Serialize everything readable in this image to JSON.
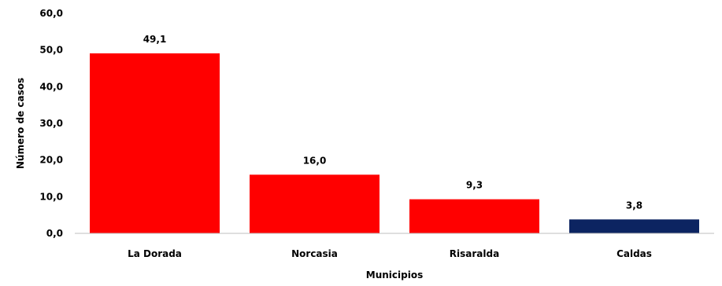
{
  "chart_data": {
    "type": "bar",
    "title": "",
    "xlabel": "Municipios",
    "ylabel": "Número de casos",
    "categories": [
      "La Dorada",
      "Norcasia",
      "Risaralda",
      "Caldas"
    ],
    "values": [
      49.1,
      16.0,
      9.3,
      3.8
    ],
    "value_labels": [
      "49,1",
      "16,0",
      "9,3",
      "3,8"
    ],
    "bar_colors": [
      "#ff0000",
      "#ff0000",
      "#ff0000",
      "#0c2461"
    ],
    "ylim": [
      0,
      60
    ],
    "yticks": [
      0,
      10,
      20,
      30,
      40,
      50,
      60
    ],
    "ytick_labels": [
      "0,0",
      "10,0",
      "20,0",
      "30,0",
      "40,0",
      "50,0",
      "60,0"
    ],
    "grid": false,
    "legend": "none"
  }
}
